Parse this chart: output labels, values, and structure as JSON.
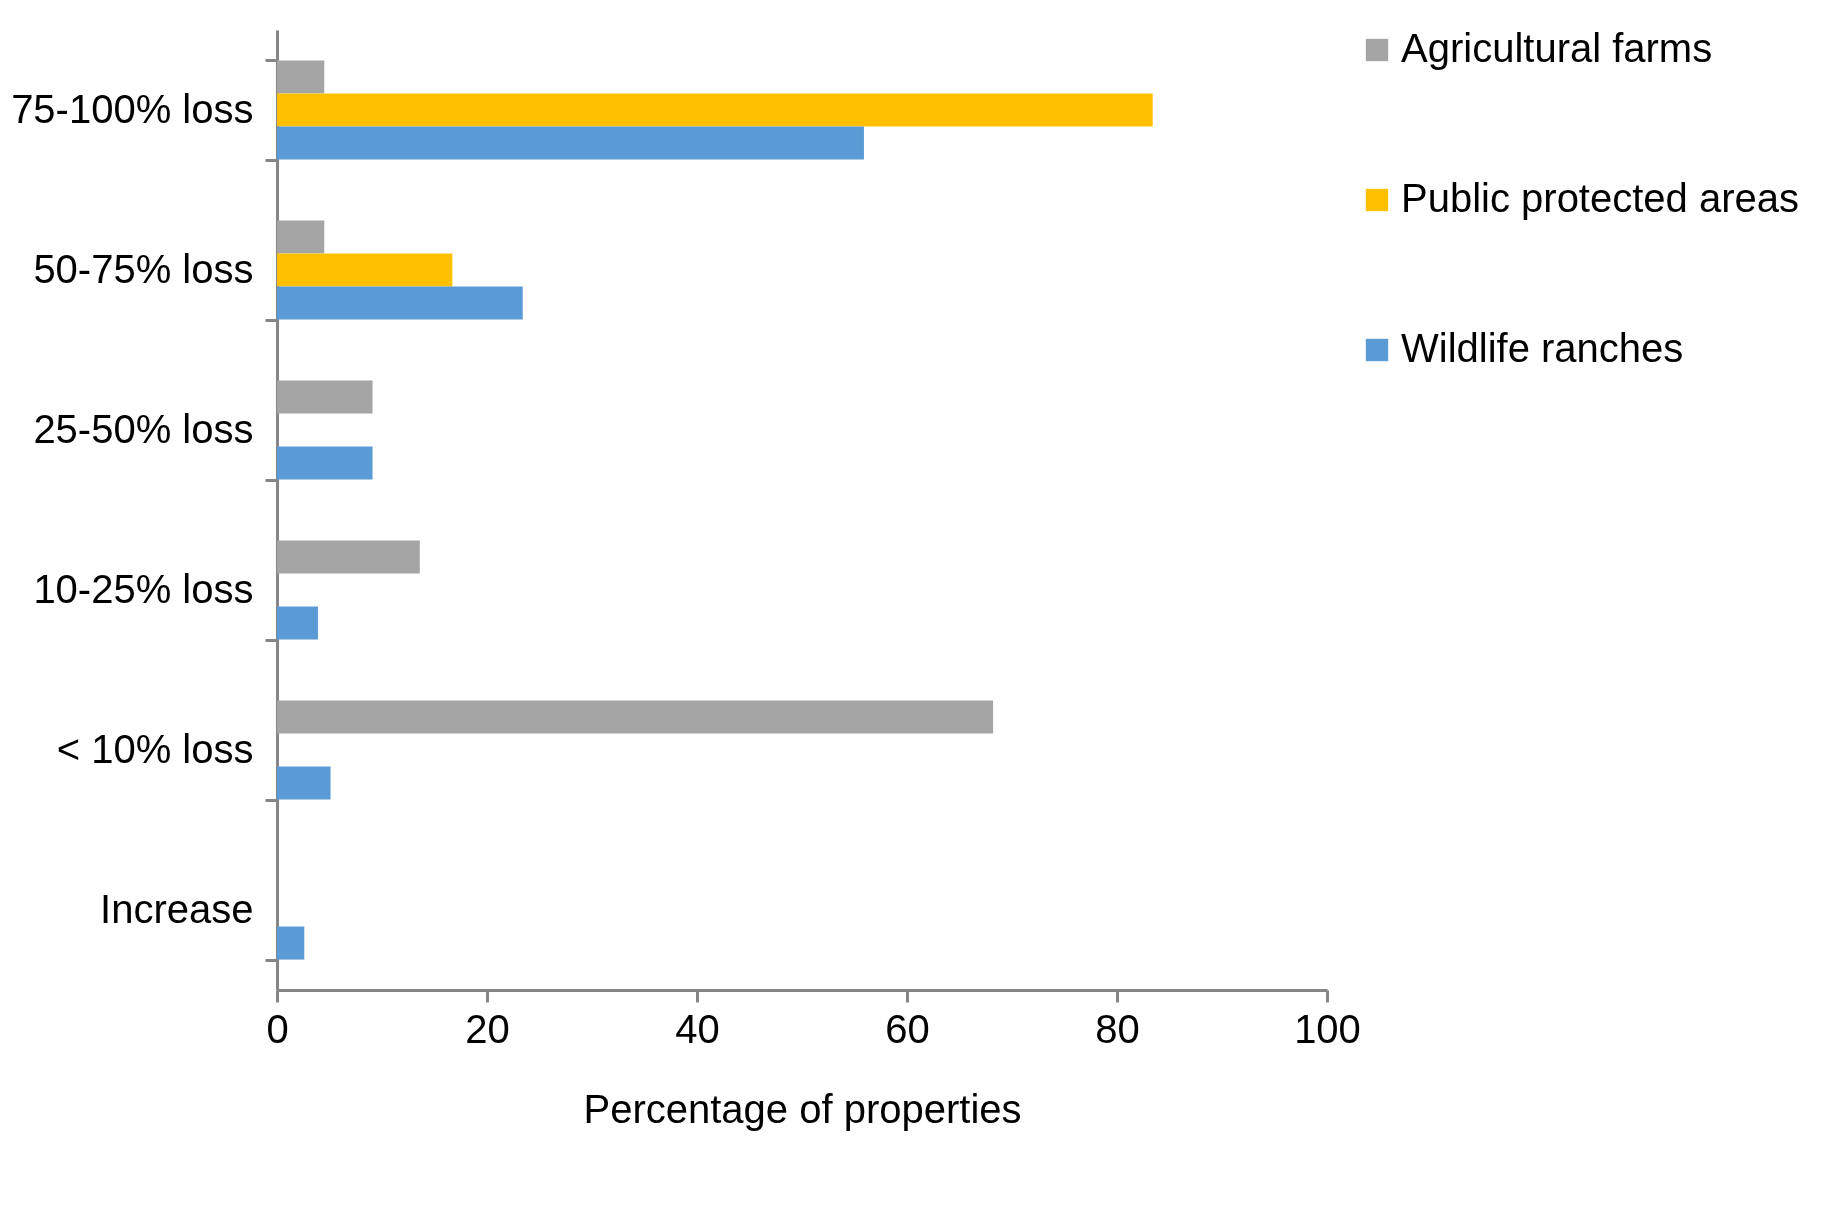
{
  "chart_data": {
    "type": "bar",
    "orientation": "horizontal",
    "xlabel": "Percentage of properties",
    "categories": [
      "75-100% loss",
      "50-75% loss",
      "25-50% loss",
      "10-25% loss",
      "< 10% loss",
      "Increase"
    ],
    "series": [
      {
        "name": "Agricultural farms",
        "color": "#a5a5a5",
        "values": [
          4.5,
          4.5,
          9.1,
          13.6,
          68.2,
          null
        ]
      },
      {
        "name": "Public protected areas",
        "color": "#ffc000",
        "values": [
          83.4,
          16.7,
          null,
          null,
          null,
          null
        ]
      },
      {
        "name": "Wildlife ranches",
        "color": "#5b9bd5",
        "values": [
          55.9,
          23.4,
          9.1,
          3.9,
          5.1,
          2.6
        ]
      }
    ],
    "xlim": [
      0,
      100
    ],
    "xticks": [
      0,
      20,
      40,
      60,
      80,
      100
    ],
    "grid": false,
    "legend": "right"
  }
}
